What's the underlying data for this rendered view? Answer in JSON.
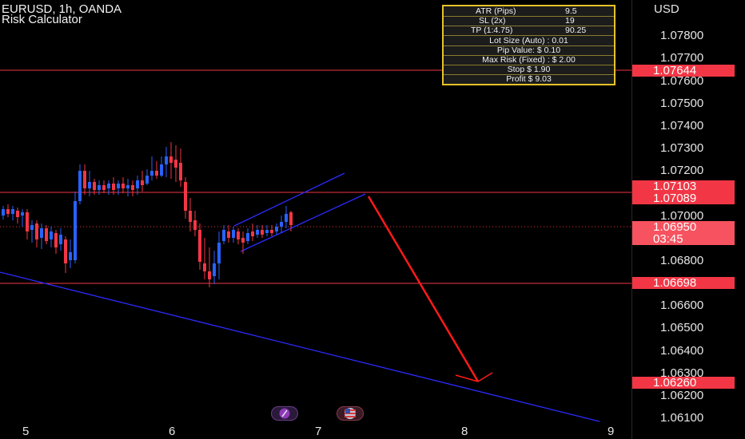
{
  "header": {
    "symbol_line": "EURUSD, 1h, OANDA",
    "indicator_name": "Risk Calculator"
  },
  "price_axis": {
    "currency": "USD",
    "ticks": [
      "1.07800",
      "1.07700",
      "1.07600",
      "1.07500",
      "1.07400",
      "1.07300",
      "1.07200",
      "1.07000",
      "1.06800",
      "1.06600",
      "1.06500",
      "1.06400",
      "1.06300",
      "1.06200",
      "1.06100"
    ]
  },
  "price_tags": {
    "level_1": "1.07644",
    "level_2": "1.07103",
    "level_3": "1.07089",
    "current_price": "1.06950",
    "countdown": "03:45",
    "level_4": "1.06698",
    "level_5": "1.06260"
  },
  "time_axis": {
    "labels": [
      "5",
      "6",
      "7",
      "8",
      "9"
    ]
  },
  "risk_calculator": {
    "rows": [
      {
        "key": "ATR (Pips)",
        "value": "9.5"
      },
      {
        "key": "SL (2x)",
        "value": "19"
      },
      {
        "key": "TP (1:4.75)",
        "value": "90.25"
      }
    ],
    "lot_size": "Lot Size (Auto) : 0.01",
    "pip_value": "Pip Value: $ 0.10",
    "max_risk": "Max Risk (Fixed) : $ 2.00",
    "stop": "Stop $ 1.90",
    "profit": "Profit $ 9.03"
  },
  "colors": {
    "background": "#000000",
    "bull_candle": "#2962ff",
    "bear_candle": "#f23645",
    "horizontal_lines": "#f23645",
    "trend_lines": "#2b2bff",
    "arrow": "#ff1a1a",
    "calculator_border": "#e6c229"
  },
  "icons": {
    "pill_1": "lightning-icon",
    "pill_2": "us-flag-icon"
  }
}
